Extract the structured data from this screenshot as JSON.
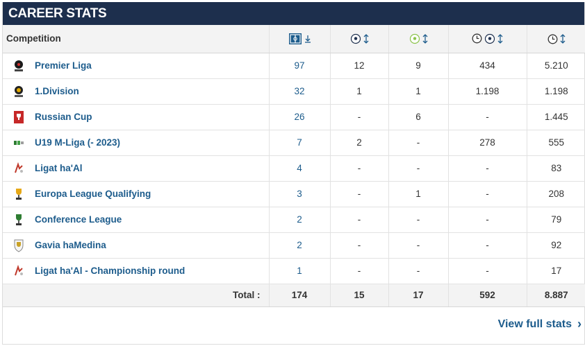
{
  "header": {
    "title": "CAREER STATS"
  },
  "columns": {
    "competition": "Competition",
    "appearances_icon": "appearances-icon",
    "goals_icon": "goals-icon",
    "assists_icon": "assists-icon",
    "minutes_per_goal_icon": "minutes-per-goal-icon",
    "minutes_icon": "minutes-played-icon"
  },
  "rows": [
    {
      "competition": "Premier Liga",
      "logo": "premier-liga-logo",
      "apps": "97",
      "goals": "12",
      "assists": "9",
      "mpg": "434",
      "minutes": "5.210"
    },
    {
      "competition": "1.Division",
      "logo": "1-division-logo",
      "apps": "32",
      "goals": "1",
      "assists": "1",
      "mpg": "1.198",
      "minutes": "1.198"
    },
    {
      "competition": "Russian Cup",
      "logo": "russian-cup-logo",
      "apps": "26",
      "goals": "-",
      "assists": "6",
      "mpg": "-",
      "minutes": "1.445"
    },
    {
      "competition": "U19 M-Liga (- 2023)",
      "logo": "u19-m-liga-logo",
      "apps": "7",
      "goals": "2",
      "assists": "-",
      "mpg": "278",
      "minutes": "555"
    },
    {
      "competition": "Ligat ha'Al",
      "logo": "ligat-haal-logo",
      "apps": "4",
      "goals": "-",
      "assists": "-",
      "mpg": "-",
      "minutes": "83"
    },
    {
      "competition": "Europa League Qualifying",
      "logo": "europa-league-logo",
      "apps": "3",
      "goals": "-",
      "assists": "1",
      "mpg": "-",
      "minutes": "208"
    },
    {
      "competition": "Conference League",
      "logo": "conference-league-logo",
      "apps": "2",
      "goals": "-",
      "assists": "-",
      "mpg": "-",
      "minutes": "79"
    },
    {
      "competition": "Gavia haMedina",
      "logo": "gavia-hamedina-logo",
      "apps": "2",
      "goals": "-",
      "assists": "-",
      "mpg": "-",
      "minutes": "92"
    },
    {
      "competition": "Ligat ha'Al - Championship round",
      "logo": "ligat-haal-logo",
      "apps": "1",
      "goals": "-",
      "assists": "-",
      "mpg": "-",
      "minutes": "17"
    }
  ],
  "total": {
    "label": "Total :",
    "apps": "174",
    "goals": "15",
    "assists": "17",
    "mpg": "592",
    "minutes": "8.887"
  },
  "footer": {
    "link_label": "View full stats"
  },
  "colors": {
    "header_bg": "#1d2f4d",
    "link": "#1d5c8c",
    "row_bg_alt": "#f3f3f3"
  }
}
